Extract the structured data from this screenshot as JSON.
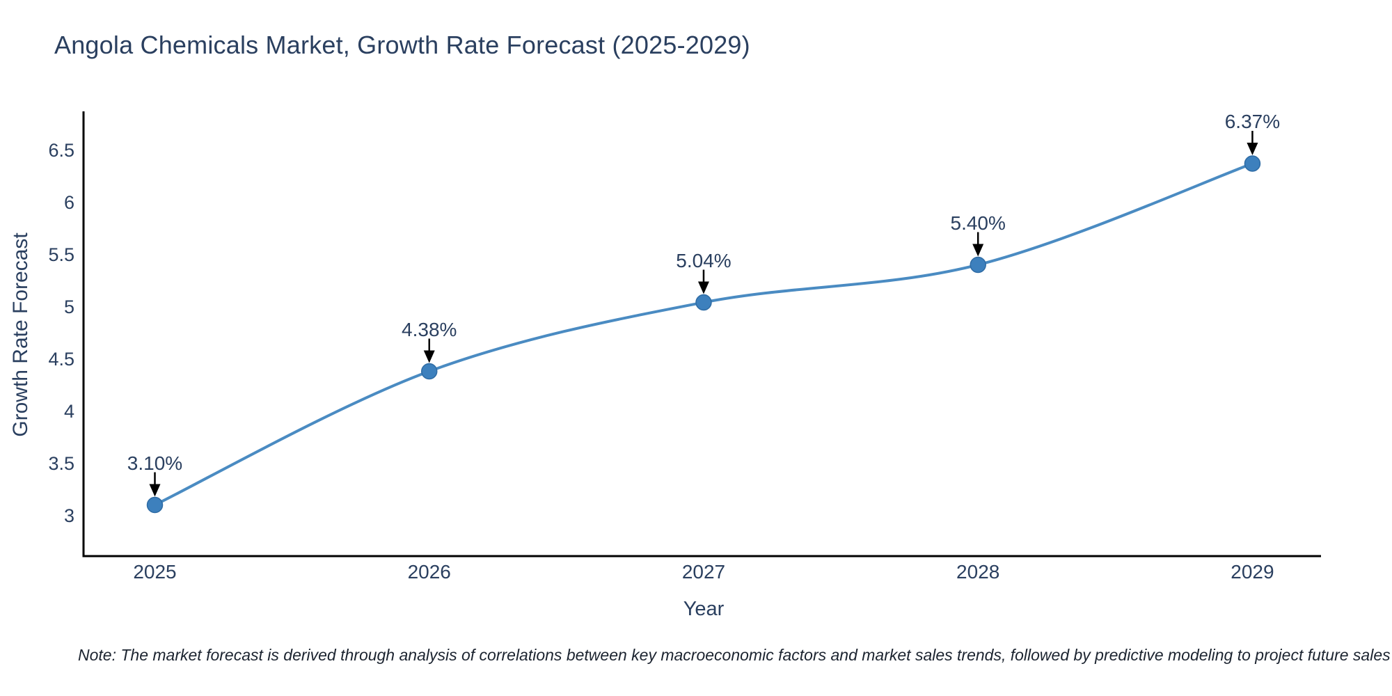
{
  "chart_data": {
    "type": "line",
    "title": "Angola Chemicals Market, Growth Rate Forecast (2025-2029)",
    "xlabel": "Year",
    "ylabel": "Growth Rate Forecast",
    "x": [
      2025,
      2026,
      2027,
      2028,
      2029
    ],
    "series": [
      {
        "name": "Growth Rate Forecast",
        "values": [
          3.1,
          4.38,
          5.04,
          5.4,
          6.37
        ]
      }
    ],
    "point_labels": [
      "3.10%",
      "4.38%",
      "5.04%",
      "5.40%",
      "6.37%"
    ],
    "x_tick_labels": [
      "2025",
      "2026",
      "2027",
      "2028",
      "2029"
    ],
    "y_ticks": [
      3,
      3.5,
      4,
      4.5,
      5,
      5.5,
      6,
      6.5
    ],
    "y_tick_labels": [
      "3",
      "3.5",
      "4",
      "4.5",
      "5",
      "5.5",
      "6",
      "6.5"
    ],
    "xlim": [
      2024.74,
      2029.25
    ],
    "ylim": [
      2.61,
      6.87
    ],
    "grid": false,
    "legend": "none",
    "line_shape": "spline",
    "annotation_arrows": "down-to-point",
    "colors": {
      "line": "#4a8bc2",
      "marker": "#3d80bd",
      "marker_edge": "#2e6ba4",
      "axis": "#000000",
      "text": "#2a3f5f",
      "arrow": "#000000",
      "background": "#ffffff"
    }
  },
  "note": {
    "text": "Note: The market forecast is derived through analysis of correlations between key macroeconomic factors and market sales trends, followed by predictive modeling to project future sales"
  }
}
